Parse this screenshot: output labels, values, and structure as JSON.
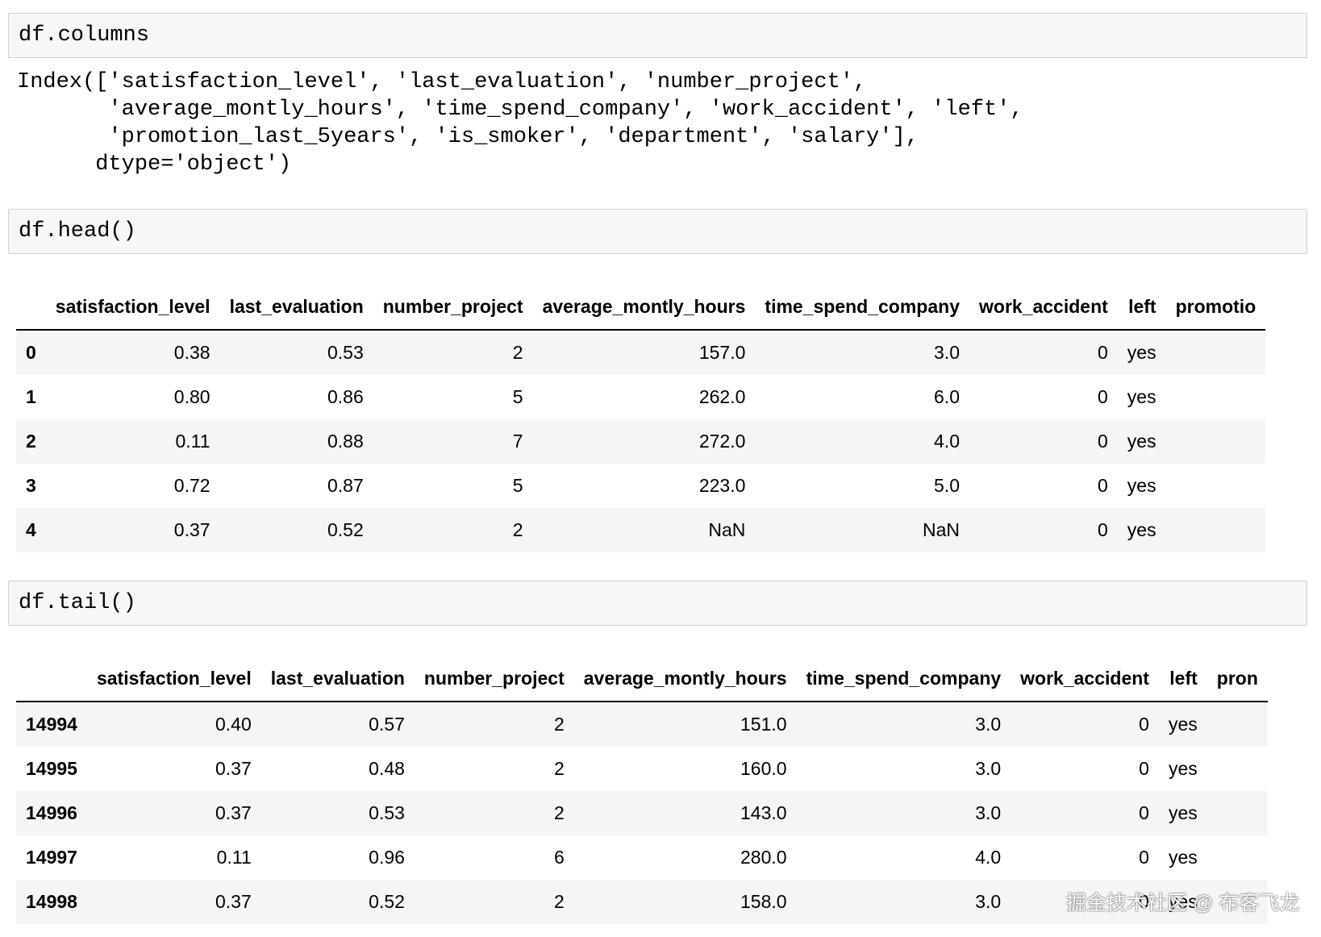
{
  "cells": [
    {
      "input": "df.columns",
      "output": [
        "Index(['satisfaction_level', 'last_evaluation', 'number_project',",
        "       'average_montly_hours', 'time_spend_company', 'work_accident', 'left',",
        "       'promotion_last_5years', 'is_smoker', 'department', 'salary'],",
        "      dtype='object')"
      ]
    },
    {
      "input": "df.head()",
      "table": {
        "columns": [
          "",
          "satisfaction_level",
          "last_evaluation",
          "number_project",
          "average_montly_hours",
          "time_spend_company",
          "work_accident",
          "left",
          "promotio"
        ],
        "rows": [
          [
            "0",
            "0.38",
            "0.53",
            "2",
            "157.0",
            "3.0",
            "0",
            "yes",
            ""
          ],
          [
            "1",
            "0.80",
            "0.86",
            "5",
            "262.0",
            "6.0",
            "0",
            "yes",
            ""
          ],
          [
            "2",
            "0.11",
            "0.88",
            "7",
            "272.0",
            "4.0",
            "0",
            "yes",
            ""
          ],
          [
            "3",
            "0.72",
            "0.87",
            "5",
            "223.0",
            "5.0",
            "0",
            "yes",
            ""
          ],
          [
            "4",
            "0.37",
            "0.52",
            "2",
            "NaN",
            "NaN",
            "0",
            "yes",
            ""
          ]
        ]
      }
    },
    {
      "input": "df.tail()",
      "table": {
        "columns": [
          "",
          "satisfaction_level",
          "last_evaluation",
          "number_project",
          "average_montly_hours",
          "time_spend_company",
          "work_accident",
          "left",
          "pron"
        ],
        "rows": [
          [
            "14994",
            "0.40",
            "0.57",
            "2",
            "151.0",
            "3.0",
            "0",
            "yes",
            ""
          ],
          [
            "14995",
            "0.37",
            "0.48",
            "2",
            "160.0",
            "3.0",
            "0",
            "yes",
            ""
          ],
          [
            "14996",
            "0.37",
            "0.53",
            "2",
            "143.0",
            "3.0",
            "0",
            "yes",
            ""
          ],
          [
            "14997",
            "0.11",
            "0.96",
            "6",
            "280.0",
            "4.0",
            "0",
            "yes",
            ""
          ],
          [
            "14998",
            "0.37",
            "0.52",
            "2",
            "158.0",
            "3.0",
            "0",
            "yes",
            ""
          ]
        ]
      }
    }
  ],
  "watermark": "掘金技术社区 @ 布客飞龙"
}
